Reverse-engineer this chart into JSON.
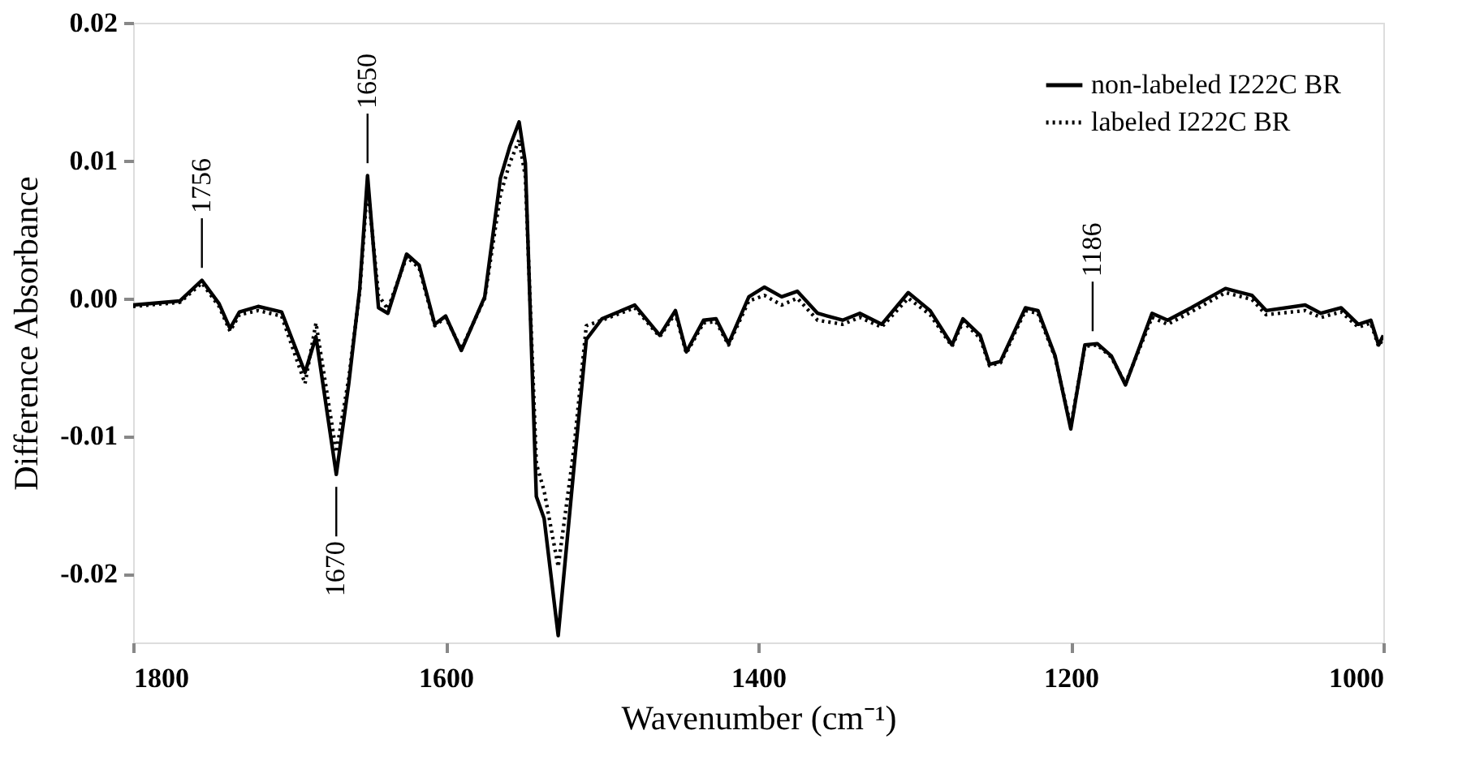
{
  "chart_data": {
    "type": "line",
    "xlabel": "Wavenumber (cm⁻¹)",
    "ylabel": "Difference Absorbance",
    "xlim": [
      1800,
      1000
    ],
    "xticks": [
      1800,
      1600,
      1400,
      1200,
      1000
    ],
    "ylim": [
      -0.025,
      0.02
    ],
    "yticks": [
      {
        "value": -0.02,
        "label": "-0.02"
      },
      {
        "value": -0.01,
        "label": "-0.01"
      },
      {
        "value": 0,
        "label": "0.00"
      },
      {
        "value": 0.01,
        "label": "0.01"
      },
      {
        "value": 0.02,
        "label": "0.02"
      }
    ],
    "x": [
      1800,
      1770,
      1756,
      1745,
      1738,
      1732,
      1720,
      1705,
      1690,
      1683,
      1670,
      1662,
      1655,
      1650,
      1643,
      1637,
      1625,
      1617,
      1607,
      1600,
      1590,
      1575,
      1565,
      1559,
      1553,
      1549,
      1542,
      1537,
      1528,
      1518,
      1510,
      1500,
      1479,
      1463,
      1453,
      1446,
      1435,
      1427,
      1419,
      1406,
      1396,
      1385,
      1375,
      1362,
      1346,
      1335,
      1321,
      1304,
      1290,
      1276,
      1269,
      1258,
      1252,
      1245,
      1229,
      1221,
      1210,
      1200,
      1191,
      1183,
      1174,
      1165,
      1148,
      1138,
      1123,
      1101,
      1084,
      1075,
      1050,
      1040,
      1027,
      1016,
      1008,
      1003,
      1000
    ],
    "series": [
      {
        "name": "non-labeled I222C BR",
        "color": "#000000",
        "line_style": "solid",
        "values": [
          -0.0005,
          -0.0002,
          0.0013,
          -0.0004,
          -0.0022,
          -0.001,
          -0.0006,
          -0.001,
          -0.0054,
          -0.0028,
          -0.0128,
          -0.0062,
          0.0007,
          0.0089,
          -0.0007,
          -0.0011,
          0.0032,
          0.0024,
          -0.0019,
          -0.0013,
          -0.0038,
          0.0001,
          0.0087,
          0.011,
          0.0128,
          0.0098,
          -0.0144,
          -0.016,
          -0.0245,
          -0.0124,
          -0.003,
          -0.0015,
          -0.0005,
          -0.0027,
          -0.0009,
          -0.0039,
          -0.0016,
          -0.0015,
          -0.0033,
          0.0001,
          0.0008,
          0.0001,
          0.0005,
          -0.0011,
          -0.0016,
          -0.0011,
          -0.0019,
          0.0004,
          -0.0009,
          -0.0034,
          -0.0015,
          -0.0027,
          -0.0048,
          -0.0046,
          -0.0007,
          -0.0009,
          -0.0042,
          -0.0095,
          -0.0034,
          -0.0033,
          -0.0042,
          -0.0063,
          -0.0011,
          -0.0016,
          -0.0007,
          0.0007,
          0.0002,
          -0.0009,
          -0.0005,
          -0.0011,
          -0.0007,
          -0.0019,
          -0.0016,
          -0.0034,
          -0.0027
        ]
      },
      {
        "name": "labeled I222C BR",
        "color": "#000000",
        "line_style": "dotted",
        "values": [
          -0.0006,
          -0.0003,
          0.0011,
          -0.0006,
          -0.0024,
          -0.0012,
          -0.0009,
          -0.0013,
          -0.0062,
          -0.0018,
          -0.0112,
          -0.0058,
          0.0005,
          0.0082,
          0.0002,
          -0.0008,
          0.003,
          0.0022,
          -0.002,
          -0.0014,
          -0.0037,
          0.0,
          0.0075,
          0.0098,
          0.0115,
          0.0088,
          -0.012,
          -0.014,
          -0.0195,
          -0.011,
          -0.002,
          -0.0016,
          -0.0007,
          -0.0028,
          -0.0011,
          -0.004,
          -0.0018,
          -0.0017,
          -0.0034,
          -0.0002,
          0.0002,
          -0.0005,
          0.0,
          -0.0016,
          -0.0019,
          -0.0014,
          -0.0021,
          0.0,
          -0.0012,
          -0.0035,
          -0.0017,
          -0.0029,
          -0.0049,
          -0.0047,
          -0.0009,
          -0.0011,
          -0.0043,
          -0.0093,
          -0.0035,
          -0.0034,
          -0.0043,
          -0.0062,
          -0.0014,
          -0.0019,
          -0.001,
          0.0004,
          -0.0001,
          -0.0012,
          -0.0009,
          -0.0014,
          -0.001,
          -0.0021,
          -0.0018,
          -0.0035,
          -0.0029
        ]
      }
    ],
    "legend": "top right",
    "annotations": [
      {
        "text": "1756",
        "x": 1756,
        "y": 0.0013
      },
      {
        "text": "1650",
        "x": 1650,
        "y": 0.0089
      },
      {
        "text": "1670",
        "x": 1670,
        "y": -0.0128
      },
      {
        "text": "1186",
        "x": 1186,
        "y": -0.0033
      }
    ]
  }
}
